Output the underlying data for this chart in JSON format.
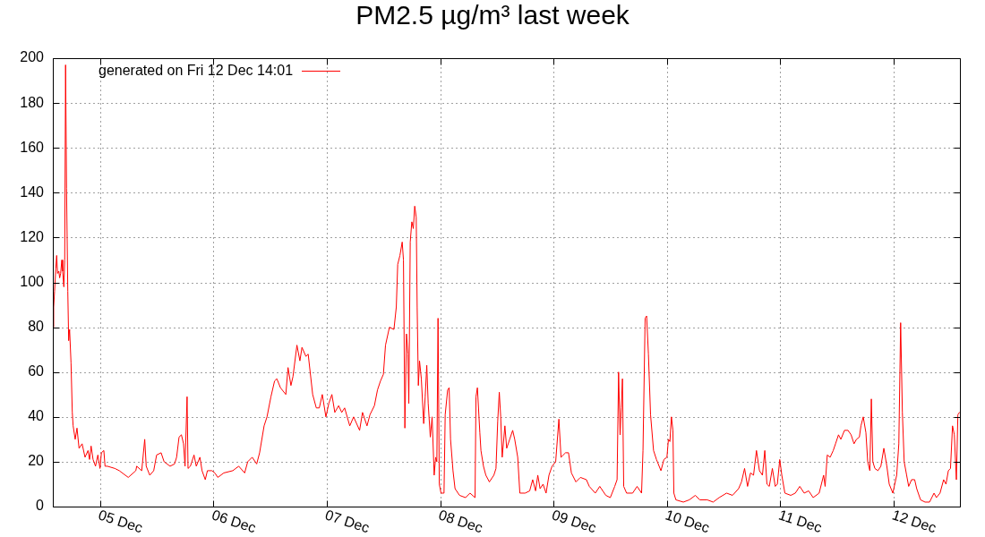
{
  "chart_data": {
    "type": "line",
    "title": "PM2.5 µg/m³ last week",
    "xlim": [
      "--12-04T14:01",
      "--12-12T14:01"
    ],
    "xticks": [
      {
        "value": "--12-05",
        "label": "05 Dec"
      },
      {
        "value": "--12-06",
        "label": "06 Dec"
      },
      {
        "value": "--12-07",
        "label": "07 Dec"
      },
      {
        "value": "--12-08",
        "label": "08 Dec"
      },
      {
        "value": "--12-09",
        "label": "09 Dec"
      },
      {
        "value": "--12-10",
        "label": "10 Dec"
      },
      {
        "value": "--12-11",
        "label": "11 Dec"
      },
      {
        "value": "--12-12",
        "label": "12 Dec"
      }
    ],
    "ylim": [
      0,
      200
    ],
    "yticks": [
      0,
      20,
      40,
      60,
      80,
      100,
      120,
      140,
      160,
      180,
      200
    ],
    "grid": true,
    "legend": "top left",
    "x": [
      "--12-04T14:02",
      "--12-04T14:12",
      "--12-04T14:23",
      "--12-04T14:38",
      "--12-04T14:50",
      "--12-04T15:01",
      "--12-04T15:17",
      "--12-04T15:28",
      "--12-04T15:40",
      "--12-04T15:55",
      "--12-04T16:06",
      "--12-04T16:21",
      "--12-04T16:32",
      "--12-04T16:43",
      "--12-04T16:55",
      "--12-04T17:11",
      "--12-04T17:22",
      "--12-04T17:34",
      "--12-04T17:52",
      "--12-04T18:08",
      "--12-04T18:19",
      "--12-04T18:45",
      "--12-04T19:08",
      "--12-04T19:34",
      "--12-04T20:13",
      "--12-04T20:50",
      "--12-04T21:28",
      "--12-04T21:47",
      "--12-04T22:07",
      "--12-04T22:32",
      "--12-04T23:03",
      "--12-04T23:33",
      "--12-05T00:00",
      "--12-05T00:18",
      "--12-05T00:49",
      "--12-05T01:04",
      "--12-05T01:34",
      "--12-05T03:09",
      "--12-05T04:05",
      "--12-05T05:59",
      "--12-05T07:35",
      "--12-05T07:46",
      "--12-05T08:50",
      "--12-05T09:28",
      "--12-05T09:47",
      "--12-05T10:32",
      "--12-05T11:22",
      "--12-05T11:59",
      "--12-05T12:56",
      "--12-05T13:34",
      "--12-05T14:50",
      "--12-05T15:47",
      "--12-05T16:13",
      "--12-05T16:44",
      "--12-05T17:14",
      "--12-05T17:41",
      "--12-05T18:00",
      "--12-05T18:26",
      "--12-05T18:38",
      "--12-05T19:08",
      "--12-05T19:54",
      "--12-05T20:23",
      "--12-05T21:09",
      "--12-05T21:36",
      "--12-05T22:17",
      "--12-05T22:44",
      "--12-05T23:41",
      "--12-06T00:19",
      "--12-06T00:56",
      "--12-06T02:12",
      "--12-06T04:06",
      "--12-06T05:22",
      "--12-06T06:37",
      "--12-06T07:16",
      "--12-06T08:13",
      "--12-06T09:10",
      "--12-06T09:47",
      "--12-06T10:44",
      "--12-06T11:21",
      "--12-06T12:11",
      "--12-06T12:57",
      "--12-06T13:26",
      "--12-06T14:12",
      "--12-06T15:20",
      "--12-06T15:48",
      "--12-06T16:25",
      "--12-06T16:51",
      "--12-06T17:41",
      "--12-06T18:19",
      "--12-06T18:45",
      "--12-06T19:35",
      "--12-06T20:04",
      "--12-06T21:01",
      "--12-06T21:47",
      "--12-06T22:25",
      "--12-06T23:03",
      "--12-06T23:49",
      "--12-07T00:26",
      "--12-07T01:05",
      "--12-07T01:42",
      "--12-07T02:31",
      "--12-07T03:10",
      "--12-07T03:47",
      "--12-07T04:52",
      "--12-07T05:41",
      "--12-07T06:57",
      "--12-07T07:34",
      "--12-07T08:31",
      "--12-07T09:09",
      "--12-07T10:05",
      "--12-07T10:44",
      "--12-07T11:22",
      "--12-07T11:59",
      "--12-07T12:26",
      "--12-07T13:16",
      "--12-07T14:13",
      "--12-07T14:43",
      "--12-07T15:01",
      "--12-07T15:29",
      "--12-07T15:58",
      "--12-07T16:14",
      "--12-07T16:32",
      "--12-07T16:52",
      "--12-07T17:11",
      "--12-07T17:22",
      "--12-07T17:40",
      "--12-07T18:00",
      "--12-07T18:19",
      "--12-07T18:37",
      "--12-07T18:56",
      "--12-07T19:08",
      "--12-07T19:23",
      "--12-07T19:38",
      "--12-07T20:01",
      "--12-07T20:31",
      "--12-07T20:50",
      "--12-07T21:10",
      "--12-07T21:28",
      "--12-07T21:55",
      "--12-07T22:18",
      "--12-07T22:44",
      "--12-07T23:03",
      "--12-07T23:18",
      "--12-07T23:33",
      "--12-07T23:49",
      "--12-08T00:11",
      "--12-08T00:49",
      "--12-08T01:04",
      "--12-08T01:35",
      "--12-08T01:54",
      "--12-08T02:12",
      "--12-08T02:43",
      "--12-08T03:09",
      "--12-08T04:06",
      "--12-08T05:22",
      "--12-08T06:19",
      "--12-08T07:23",
      "--12-08T07:35",
      "--12-08T07:53",
      "--12-08T08:24",
      "--12-08T08:38",
      "--12-08T09:10",
      "--12-08T09:40",
      "--12-08T10:25",
      "--12-08T11:22",
      "--12-08T11:49",
      "--12-08T12:11",
      "--12-08T12:31",
      "--12-08T12:49",
      "--12-08T13:08",
      "--12-08T13:42",
      "--12-08T14:05",
      "--12-08T14:43",
      "--12-08T15:21",
      "--12-08T15:47",
      "--12-08T16:25",
      "--12-08T16:52",
      "--12-08T18:00",
      "--12-08T18:57",
      "--12-08T19:35",
      "--12-08T20:12",
      "--12-08T20:40",
      "--12-08T21:09",
      "--12-08T21:47",
      "--12-08T22:25",
      "--12-08T23:02",
      "--12-08T23:41",
      "--12-09T00:27",
      "--12-09T01:08",
      "--12-09T01:35",
      "--12-09T02:32",
      "--12-09T03:10",
      "--12-09T03:47",
      "--12-09T04:44",
      "--12-09T05:41",
      "--12-09T06:57",
      "--12-09T07:34",
      "--12-09T08:50",
      "--12-09T09:47",
      "--12-09T11:04",
      "--12-09T12:01",
      "--12-09T12:57",
      "--12-09T13:27",
      "--12-09T13:46",
      "--12-09T14:05",
      "--12-09T14:20",
      "--12-09T14:35",
      "--12-09T14:51",
      "--12-09T15:28",
      "--12-09T16:44",
      "--12-09T17:41",
      "--12-09T18:38",
      "--12-09T18:56",
      "--12-09T19:23",
      "--12-09T19:42",
      "--12-09T20:05",
      "--12-09T20:32",
      "--12-09T21:10",
      "--12-09T21:47",
      "--12-09T22:44",
      "--12-09T23:22",
      "--12-10T00:00",
      "--12-10T00:19",
      "--12-10T00:38",
      "--12-10T00:57",
      "--12-10T01:16",
      "--12-10T01:28",
      "--12-10T01:54",
      "--12-10T03:28",
      "--12-10T04:44",
      "--12-10T06:01",
      "--12-10T06:57",
      "--12-10T08:32",
      "--12-10T09:47",
      "--12-10T11:03",
      "--12-10T12:38",
      "--12-10T13:53",
      "--12-10T15:10",
      "--12-10T15:47",
      "--12-10T16:26",
      "--12-10T17:04",
      "--12-10T17:41",
      "--12-10T18:20",
      "--12-10T18:57",
      "--12-10T19:35",
      "--12-10T20:13",
      "--12-10T20:43",
      "--12-10T21:10",
      "--12-10T21:40",
      "--12-10T22:19",
      "--12-10T22:56",
      "--12-10T23:22",
      "--12-10T23:53",
      "--12-11T00:19",
      "--12-11T00:58",
      "--12-11T02:13",
      "--12-11T03:10",
      "--12-11T04:07",
      "--12-11T05:03",
      "--12-11T06:00",
      "--12-11T06:57",
      "--12-11T08:13",
      "--12-11T09:10",
      "--12-11T09:29",
      "--12-11T09:56",
      "--12-11T10:33",
      "--12-11T11:12",
      "--12-11T11:41",
      "--12-11T12:19",
      "--12-11T12:49",
      "--12-11T13:35",
      "--12-11T14:20",
      "--12-11T14:59",
      "--12-11T15:36",
      "--12-11T16:07",
      "--12-11T16:44",
      "--12-11T17:04",
      "--12-11T17:33",
      "--12-11T18:07",
      "--12-11T18:30",
      "--12-11T18:57",
      "--12-11T19:16",
      "--12-11T19:35",
      "--12-11T20:01",
      "--12-11T20:40",
      "--12-11T21:17",
      "--12-11T21:55",
      "--12-11T22:33",
      "--12-11T23:03",
      "--12-11T23:49",
      "--12-12T00:38",
      "--12-12T01:05",
      "--12-12T01:28",
      "--12-12T01:50",
      "--12-12T02:13",
      "--12-12T02:44",
      "--12-12T03:10",
      "--12-12T03:47",
      "--12-12T04:26",
      "--12-12T04:52",
      "--12-12T05:41",
      "--12-12T06:38",
      "--12-12T07:35",
      "--12-12T08:32",
      "--12-12T09:02",
      "--12-12T09:48",
      "--12-12T10:34",
      "--12-12T11:04",
      "--12-12T11:34",
      "--12-12T12:01",
      "--12-12T12:27",
      "--12-12T12:50",
      "--12-12T13:16",
      "--12-12T13:35",
      "--12-12T13:55"
    ],
    "series": [
      {
        "name": "generated on Fri 12 Dec 14:01",
        "color": "#ff0000",
        "values": [
          80,
          89,
          96,
          106,
          112,
          104,
          105,
          102,
          104,
          110,
          105,
          98,
          110,
          197,
          142,
          96,
          74,
          79,
          64,
          42,
          36,
          30,
          35,
          26,
          28,
          22,
          25,
          21,
          27,
          21,
          18,
          23,
          17,
          24,
          25,
          18,
          18,
          17,
          16,
          13,
          16,
          18,
          16,
          30,
          18,
          14,
          16,
          23,
          24,
          20,
          18,
          19,
          22,
          31,
          32,
          28,
          18,
          49,
          17,
          18,
          23,
          18,
          22,
          16,
          12,
          16,
          16,
          15,
          13,
          15,
          16,
          18,
          15,
          20,
          22,
          19,
          24,
          36,
          40,
          49,
          56,
          57,
          53,
          50,
          62,
          54,
          58,
          72,
          65,
          71,
          67,
          68,
          50,
          44,
          44,
          50,
          40,
          46,
          50,
          42,
          45,
          42,
          44,
          36,
          40,
          34,
          42,
          36,
          41,
          45,
          52,
          56,
          59,
          72,
          80,
          79,
          89,
          108,
          112,
          118,
          110,
          35,
          77,
          68,
          46,
          118,
          127,
          124,
          134,
          129,
          89,
          54,
          65,
          57,
          37,
          49,
          63,
          46,
          31,
          40,
          14,
          22,
          20,
          84,
          10,
          6,
          6,
          41,
          52,
          53,
          30,
          16,
          8,
          5,
          4,
          6,
          4,
          49,
          53,
          33,
          25,
          18,
          14,
          11,
          14,
          17,
          38,
          51,
          40,
          22,
          36,
          26,
          30,
          34,
          30,
          22,
          6,
          6,
          7,
          12,
          7,
          14,
          8,
          10,
          6,
          14,
          18,
          20,
          39,
          22,
          24,
          24,
          15,
          11,
          13,
          12,
          9,
          6,
          9,
          5,
          4,
          9,
          12,
          60,
          32,
          44,
          57,
          9,
          6,
          6,
          9,
          6,
          25,
          84,
          85,
          68,
          41,
          25,
          21,
          16,
          21,
          22,
          30,
          29,
          40,
          34,
          6,
          3,
          2,
          3,
          5,
          3,
          3,
          2,
          4,
          6,
          5,
          8,
          11,
          17,
          9,
          15,
          14,
          25,
          16,
          14,
          25,
          10,
          9,
          17,
          9,
          10,
          21,
          14,
          6,
          5,
          6,
          9,
          6,
          7,
          4,
          6,
          14,
          9,
          23,
          22,
          25,
          28,
          32,
          30,
          34,
          34,
          32,
          28,
          30,
          31,
          36,
          40,
          33,
          20,
          16,
          48,
          20,
          17,
          16,
          18,
          26,
          18,
          10,
          6,
          14,
          28,
          82,
          42,
          20,
          14,
          9,
          12,
          12,
          8,
          3,
          2,
          2,
          6,
          4,
          6,
          12,
          10,
          16,
          17,
          36,
          32,
          12,
          41,
          42
        ]
      }
    ]
  }
}
